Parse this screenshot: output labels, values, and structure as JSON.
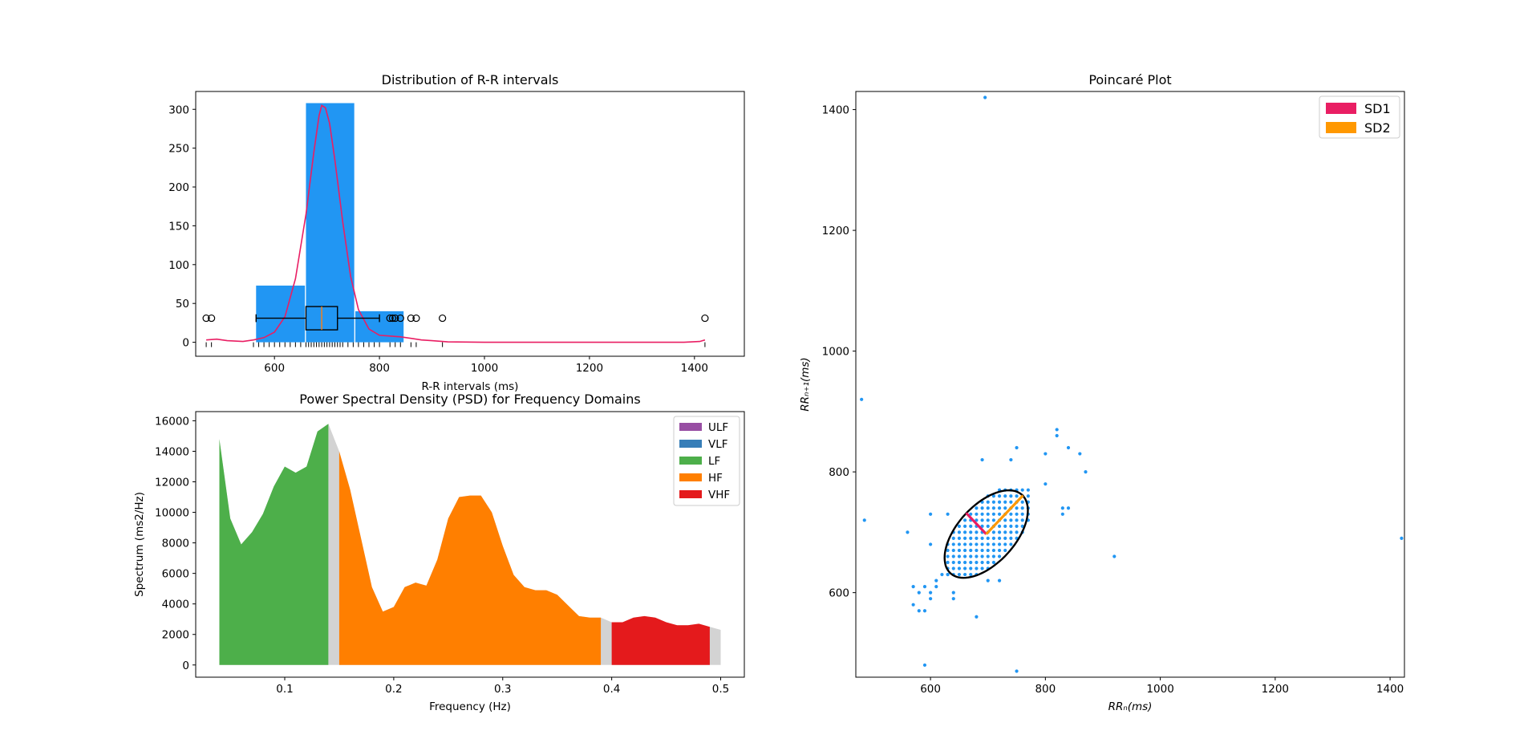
{
  "colors": {
    "hist_bar": "#2196F3",
    "kde": "#E91E63",
    "ulf": "#984EA3",
    "vlf": "#377EB8",
    "lf": "#4DAF4A",
    "hf": "#FF7F00",
    "vhf": "#E41A1C",
    "gap": "#D3D3D3",
    "poincare_point": "#2196F3",
    "sd1": "#E91E63",
    "sd2": "#FF9800"
  },
  "chart_data": [
    {
      "id": "hist",
      "type": "bar",
      "title": "Distribution of R-R intervals",
      "xlabel": "R-R intervals (ms)",
      "ylabel": "",
      "xlim": [
        450,
        1495
      ],
      "ylim": [
        -18,
        323
      ],
      "xticks": [
        600,
        800,
        1000,
        1200,
        1400
      ],
      "yticks": [
        0,
        50,
        100,
        150,
        200,
        250,
        300
      ],
      "bars": [
        {
          "x0": 565,
          "x1": 658,
          "value": 73
        },
        {
          "x0": 660,
          "x1": 752,
          "value": 308
        },
        {
          "x0": 754,
          "x1": 846,
          "value": 40
        }
      ],
      "kde": [
        [
          470,
          3
        ],
        [
          490,
          4
        ],
        [
          510,
          2
        ],
        [
          540,
          1
        ],
        [
          560,
          3
        ],
        [
          580,
          6
        ],
        [
          600,
          13
        ],
        [
          620,
          33
        ],
        [
          640,
          82
        ],
        [
          660,
          165
        ],
        [
          675,
          245
        ],
        [
          685,
          292
        ],
        [
          690,
          305
        ],
        [
          697,
          302
        ],
        [
          705,
          282
        ],
        [
          715,
          235
        ],
        [
          730,
          155
        ],
        [
          745,
          85
        ],
        [
          760,
          42
        ],
        [
          780,
          17
        ],
        [
          800,
          9
        ],
        [
          820,
          8
        ],
        [
          840,
          7
        ],
        [
          860,
          5
        ],
        [
          880,
          3
        ],
        [
          900,
          2
        ],
        [
          930,
          0.5
        ],
        [
          1000,
          0
        ],
        [
          1200,
          0
        ],
        [
          1380,
          0
        ],
        [
          1410,
          1
        ],
        [
          1420,
          3
        ]
      ],
      "boxplot": {
        "y": 31,
        "whisker_low": 565,
        "q1": 660,
        "median": 690,
        "q3": 720,
        "whisker_high": 800,
        "box_half_height": 15,
        "cap_half_height": 5
      },
      "outliers": [
        470,
        480,
        820,
        825,
        830,
        840,
        860,
        870,
        920,
        1420
      ],
      "rug": [
        470,
        480,
        560,
        570,
        580,
        590,
        600,
        610,
        620,
        630,
        640,
        650,
        660,
        665,
        670,
        675,
        680,
        685,
        690,
        695,
        700,
        705,
        710,
        715,
        720,
        725,
        730,
        740,
        750,
        760,
        770,
        780,
        790,
        800,
        820,
        830,
        840,
        860,
        870,
        920,
        1420
      ]
    },
    {
      "id": "psd",
      "type": "area",
      "title": "Power Spectral Density (PSD) for Frequency Domains",
      "xlabel": "Frequency (Hz)",
      "ylabel": "Spectrum (ms2/Hz)",
      "xlim": [
        0.0183,
        0.5217
      ],
      "ylim": [
        -800,
        16600
      ],
      "xticks": [
        0.1,
        0.2,
        0.3,
        0.4,
        0.5
      ],
      "yticks": [
        0,
        2000,
        4000,
        6000,
        8000,
        10000,
        12000,
        14000,
        16000
      ],
      "legend_position": "top-right",
      "spectrum": [
        [
          0.04,
          14800
        ],
        [
          0.05,
          9600
        ],
        [
          0.06,
          7900
        ],
        [
          0.07,
          8700
        ],
        [
          0.08,
          9900
        ],
        [
          0.09,
          11700
        ],
        [
          0.1,
          13000
        ],
        [
          0.11,
          12600
        ],
        [
          0.12,
          13000
        ],
        [
          0.13,
          15300
        ],
        [
          0.14,
          15800
        ],
        [
          0.15,
          14000
        ],
        [
          0.16,
          11500
        ],
        [
          0.17,
          8300
        ],
        [
          0.18,
          5100
        ],
        [
          0.19,
          3500
        ],
        [
          0.2,
          3800
        ],
        [
          0.21,
          5100
        ],
        [
          0.22,
          5400
        ],
        [
          0.23,
          5200
        ],
        [
          0.24,
          6900
        ],
        [
          0.25,
          9600
        ],
        [
          0.26,
          11000
        ],
        [
          0.27,
          11100
        ],
        [
          0.28,
          11100
        ],
        [
          0.29,
          10000
        ],
        [
          0.3,
          7800
        ],
        [
          0.31,
          5900
        ],
        [
          0.32,
          5100
        ],
        [
          0.33,
          4900
        ],
        [
          0.34,
          4900
        ],
        [
          0.35,
          4600
        ],
        [
          0.36,
          3900
        ],
        [
          0.37,
          3200
        ],
        [
          0.38,
          3100
        ],
        [
          0.39,
          3100
        ],
        [
          0.4,
          2800
        ],
        [
          0.41,
          2800
        ],
        [
          0.42,
          3100
        ],
        [
          0.43,
          3200
        ],
        [
          0.44,
          3100
        ],
        [
          0.45,
          2800
        ],
        [
          0.46,
          2600
        ],
        [
          0.47,
          2600
        ],
        [
          0.48,
          2700
        ],
        [
          0.49,
          2500
        ],
        [
          0.5,
          2300
        ]
      ],
      "bands": [
        {
          "name": "ULF",
          "range": [
            0,
            0.0033
          ]
        },
        {
          "name": "VLF",
          "range": [
            0.0033,
            0.04
          ]
        },
        {
          "name": "LF",
          "range": [
            0.04,
            0.14
          ]
        },
        {
          "name": "HF",
          "range": [
            0.15,
            0.39
          ]
        },
        {
          "name": "VHF",
          "range": [
            0.4,
            0.49
          ]
        }
      ]
    },
    {
      "id": "poincare",
      "type": "scatter",
      "title": "Poincaré Plot",
      "xlabel": "RRₙ(ms)",
      "ylabel": "RRₙ₊₁(ms)",
      "xlim": [
        470,
        1425
      ],
      "ylim": [
        460,
        1430
      ],
      "xticks": [
        600,
        800,
        1000,
        1200,
        1400
      ],
      "yticks": [
        600,
        800,
        1000,
        1200,
        1400
      ],
      "legend_position": "top-right",
      "ellipse": {
        "center": [
          697,
          697
        ],
        "sd1": 49,
        "sd2": 90,
        "angle_deg": 45
      },
      "sd1_line": [
        [
          697,
          697
        ],
        [
          662,
          732
        ]
      ],
      "sd2_line": [
        [
          697,
          697
        ],
        [
          761,
          761
        ]
      ],
      "series": [
        {
          "name": "SD1"
        },
        {
          "name": "SD2"
        }
      ],
      "outlier_points": [
        [
          480,
          920
        ],
        [
          485,
          720
        ],
        [
          695,
          1420
        ],
        [
          1420,
          690
        ],
        [
          920,
          660
        ],
        [
          750,
          470
        ],
        [
          590,
          480
        ],
        [
          680,
          560
        ],
        [
          560,
          700
        ],
        [
          600,
          730
        ],
        [
          630,
          730
        ],
        [
          690,
          820
        ],
        [
          740,
          820
        ],
        [
          750,
          840
        ],
        [
          800,
          830
        ],
        [
          820,
          870
        ],
        [
          820,
          860
        ],
        [
          840,
          840
        ],
        [
          860,
          830
        ],
        [
          870,
          800
        ],
        [
          830,
          740
        ],
        [
          830,
          730
        ],
        [
          840,
          740
        ],
        [
          800,
          780
        ],
        [
          570,
          610
        ],
        [
          580,
          600
        ],
        [
          590,
          610
        ],
        [
          600,
          600
        ],
        [
          570,
          580
        ],
        [
          580,
          570
        ],
        [
          590,
          570
        ],
        [
          600,
          590
        ],
        [
          610,
          610
        ],
        [
          610,
          620
        ],
        [
          620,
          630
        ],
        [
          630,
          630
        ],
        [
          600,
          680
        ],
        [
          700,
          620
        ],
        [
          720,
          620
        ],
        [
          640,
          590
        ],
        [
          640,
          600
        ]
      ]
    }
  ]
}
